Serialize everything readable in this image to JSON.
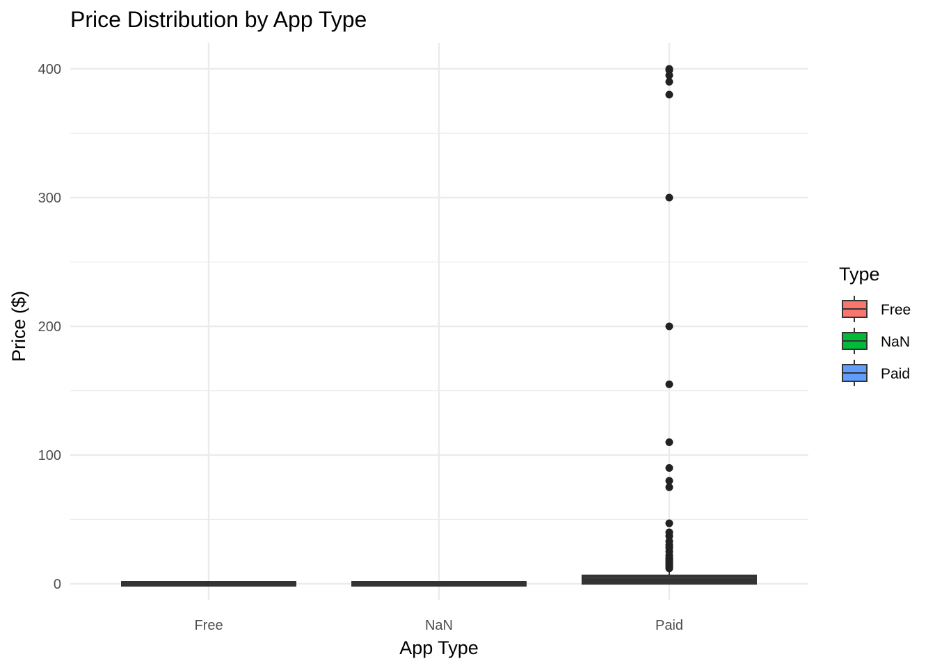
{
  "chart_data": {
    "type": "boxplot",
    "title": "Price Distribution by App Type",
    "xlabel": "App Type",
    "ylabel": "Price ($)",
    "categories": [
      "Free",
      "NaN",
      "Paid"
    ],
    "ylim": [
      -15,
      420
    ],
    "y_major_ticks": [
      0,
      100,
      200,
      300,
      400
    ],
    "y_minor_ticks": [
      50,
      150,
      250,
      350
    ],
    "grid": true,
    "series": [
      {
        "name": "Free",
        "color": "#F8766D",
        "box": {
          "min": 0,
          "q1": 0,
          "median": 0,
          "q3": 0,
          "max": 0
        },
        "outliers": []
      },
      {
        "name": "NaN",
        "color": "#00BA38",
        "box": {
          "min": 0,
          "q1": 0,
          "median": 0,
          "q3": 0,
          "max": 0
        },
        "outliers": []
      },
      {
        "name": "Paid",
        "color": "#619CFF",
        "box": {
          "min": 0.99,
          "q1": 1.49,
          "median": 2.99,
          "q3": 4.99,
          "max": 10.0
        },
        "outliers": [
          12,
          13,
          14,
          15,
          16,
          17,
          18,
          19,
          20,
          22,
          25,
          28,
          30,
          33,
          37,
          40,
          47,
          75,
          80,
          90,
          110,
          155,
          200,
          300,
          380,
          390,
          395,
          399,
          400
        ]
      }
    ],
    "legend": {
      "title": "Type",
      "placement": "right",
      "entries": [
        {
          "label": "Free",
          "color": "#F8766D"
        },
        {
          "label": "NaN",
          "color": "#00BA38"
        },
        {
          "label": "Paid",
          "color": "#619CFF"
        }
      ]
    }
  }
}
